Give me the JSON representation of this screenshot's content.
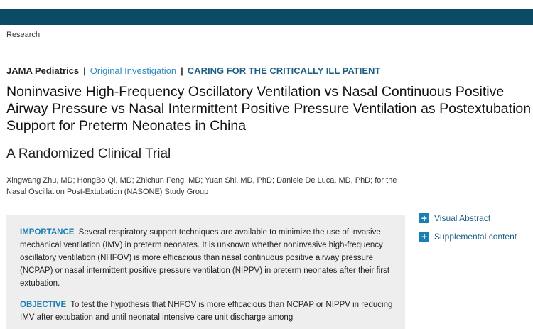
{
  "header": {
    "section": "Research"
  },
  "journal": {
    "name": "JAMA Pediatrics",
    "separator": "|",
    "article_type": "Original Investigation",
    "category": "CARING FOR THE CRITICALLY ILL PATIENT"
  },
  "article": {
    "title": "Noninvasive High-Frequency Oscillatory Ventilation vs Nasal Continuous Positive Airway Pressure vs Nasal Intermittent Positive Pressure Ventilation as Postextubation Support for Preterm Neonates in China",
    "subtitle": "A Randomized Clinical Trial",
    "authors": "Xingwang Zhu, MD; HongBo Qi, MD; Zhichun Feng, MD; Yuan Shi, MD, PhD; Daniele De Luca, MD, PhD; for the Nasal Oscillation Post-Extubation (NASONE) Study Group"
  },
  "abstract": {
    "importance_label": "IMPORTANCE",
    "importance_text": "Several respiratory support techniques are available to minimize the use of invasive mechanical ventilation (IMV) in preterm neonates. It is unknown whether noninvasive high-frequency oscillatory ventilation (NHFOV) is more efficacious than nasal continuous positive airway pressure (NCPAP) or nasal intermittent positive pressure ventilation (NIPPV) in preterm neonates after their first extubation.",
    "objective_label": "OBJECTIVE",
    "objective_text": "To test the hypothesis that NHFOV is more efficacious than NCPAP or NIPPV in reducing IMV after extubation and until neonatal intensive care unit discharge among"
  },
  "sidebar": {
    "visual_abstract": "Visual Abstract",
    "supplemental": "Supplemental content"
  }
}
